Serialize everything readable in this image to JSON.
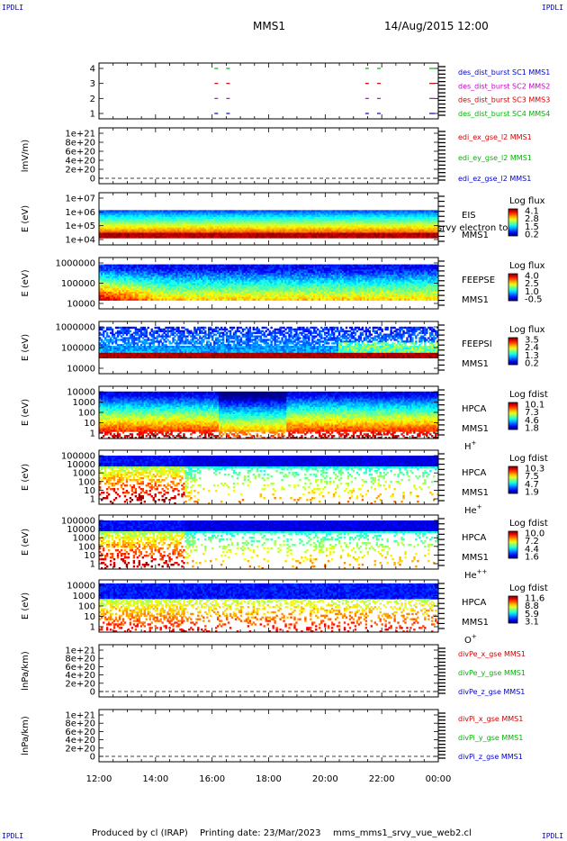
{
  "header": {
    "corner_tl": "IPDLI",
    "corner_tr": "IPDLI",
    "corner_bl": "IPDLI",
    "corner_br": "IPDLI",
    "title": "MMS1",
    "datetime": "14/Aug/2015 12:00"
  },
  "footer": {
    "produced": "Produced by cl (IRAP)",
    "printing": "Printing date: 23/Mar/2023",
    "script": "mms_mms1_srvy_vue_web2.cl"
  },
  "colors": {
    "sc1": "#0000c8",
    "sc2": "#c800c8",
    "sc3": "#d20000",
    "sc4": "#00b400",
    "x": "#d20000",
    "y": "#00b400",
    "z": "#0000c8"
  },
  "chart_data": {
    "type": "heatmap",
    "x_ticks": [
      "12:00",
      "14:00",
      "16:00",
      "18:00",
      "20:00",
      "22:00",
      "00:00"
    ],
    "xlim": [
      "12:00",
      "00:00"
    ],
    "panels": [
      {
        "id": "burst",
        "type": "scatter",
        "ylabel": "",
        "y_ticks": [
          "4",
          "3",
          "2",
          "1"
        ],
        "legend": [
          {
            "text": "des_dist_burst SC1 MMS1",
            "color": "sc1"
          },
          {
            "text": "des_dist_burst SC2 MMS2",
            "color": "sc2"
          },
          {
            "text": "des_dist_burst SC3 MMS3",
            "color": "sc3"
          },
          {
            "text": "des_dist_burst SC4 MMS4",
            "color": "sc4"
          }
        ],
        "burst_times": [
          "16:05",
          "16:30",
          "21:25",
          "21:50"
        ]
      },
      {
        "id": "edi",
        "type": "line",
        "ylabel": "lmV/m)",
        "y_ticks": [
          "1e+21",
          "8e+20",
          "6e+20",
          "4e+20",
          "2e+20",
          "0"
        ],
        "legend": [
          {
            "text": "edi_ex_gse_l2 MMS1",
            "color": "x"
          },
          {
            "text": "edi_ey_gse_l2 MMS1",
            "color": "y"
          },
          {
            "text": "edi_ez_gse_l2 MMS1",
            "color": "z"
          }
        ]
      },
      {
        "id": "eis",
        "type": "heatmap",
        "ylabel": "E (eV)",
        "y_ticks": [
          "1e+07",
          "1e+06",
          "1e+05",
          "1e+04"
        ],
        "labels": [
          "EIS",
          "MMS1"
        ],
        "overlay_text": "srvy electron to",
        "cbar_title": "Log flux",
        "cbar_ticks": [
          "4.1",
          "2.8",
          "1.5",
          "0.2"
        ]
      },
      {
        "id": "feepse",
        "type": "heatmap",
        "ylabel": "E (eV)",
        "y_ticks": [
          "1000000",
          "100000",
          "10000"
        ],
        "labels": [
          "FEEPSE",
          "MMS1"
        ],
        "cbar_title": "Log flux",
        "cbar_ticks": [
          "4.0",
          "2.5",
          "1.0",
          "-0.5"
        ]
      },
      {
        "id": "feepsi",
        "type": "heatmap",
        "ylabel": "E (eV)",
        "y_ticks": [
          "1000000",
          "100000",
          "10000"
        ],
        "labels": [
          "FEEPSI",
          "MMS1"
        ],
        "cbar_title": "Log flux",
        "cbar_ticks": [
          "3.5",
          "2.4",
          "1.3",
          "0.2"
        ]
      },
      {
        "id": "hpca_h",
        "type": "heatmap",
        "ylabel": "E (eV)",
        "y_ticks": [
          "10000",
          "1000",
          "100",
          "10",
          "1"
        ],
        "labels": [
          "HPCA",
          "MMS1"
        ],
        "species": "H",
        "species_sup": "+",
        "cbar_title": "Log fdist",
        "cbar_ticks": [
          "10.1",
          "7.3",
          "4.6",
          "1.8"
        ]
      },
      {
        "id": "hpca_he",
        "type": "heatmap",
        "ylabel": "E (eV)",
        "y_ticks": [
          "100000",
          "10000",
          "1000",
          "100",
          "10",
          "1"
        ],
        "labels": [
          "HPCA",
          "MMS1"
        ],
        "species": "He",
        "species_sup": "+",
        "cbar_title": "Log fdist",
        "cbar_ticks": [
          "10.3",
          "7.5",
          "4.7",
          "1.9"
        ]
      },
      {
        "id": "hpca_hepp",
        "type": "heatmap",
        "ylabel": "E (eV)",
        "y_ticks": [
          "100000",
          "10000",
          "1000",
          "100",
          "10",
          "1"
        ],
        "labels": [
          "HPCA",
          "MMS1"
        ],
        "species": "He",
        "species_sup": "++",
        "cbar_title": "Log fdist",
        "cbar_ticks": [
          "10.0",
          "7.2",
          "4.4",
          "1.6"
        ]
      },
      {
        "id": "hpca_o",
        "type": "heatmap",
        "ylabel": "E (eV)",
        "y_ticks": [
          "10000",
          "1000",
          "100",
          "10",
          "1"
        ],
        "labels": [
          "HPCA",
          "MMS1"
        ],
        "species": "O",
        "species_sup": "+",
        "cbar_title": "Log fdist",
        "cbar_ticks": [
          "11.6",
          "8.8",
          "5.9",
          "3.1"
        ]
      },
      {
        "id": "divpe",
        "type": "line",
        "ylabel": "lnPa/km)",
        "y_ticks": [
          "1e+21",
          "8e+20",
          "6e+20",
          "4e+20",
          "2e+20",
          "0"
        ],
        "legend": [
          {
            "text": "divPe_x_gse MMS1",
            "color": "x"
          },
          {
            "text": "divPe_y_gse MMS1",
            "color": "y"
          },
          {
            "text": "divPe_z_gse MMS1",
            "color": "z"
          }
        ]
      },
      {
        "id": "divpi",
        "type": "line",
        "ylabel": "lnPa/km)",
        "y_ticks": [
          "1e+21",
          "8e+20",
          "6e+20",
          "4e+20",
          "2e+20",
          "0"
        ],
        "legend": [
          {
            "text": "divPi_x_gse MMS1",
            "color": "x"
          },
          {
            "text": "divPi_y_gse MMS1",
            "color": "y"
          },
          {
            "text": "divPi_z_gse MMS1",
            "color": "z"
          }
        ]
      }
    ]
  }
}
